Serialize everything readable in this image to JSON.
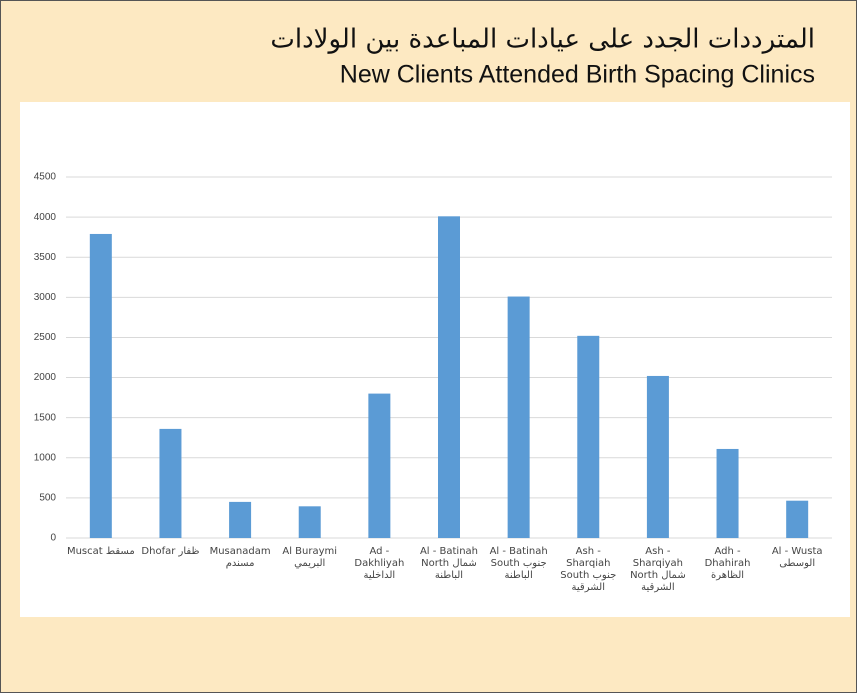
{
  "chart_data": {
    "type": "bar",
    "title": "المترددات الجدد على عيادات المباعدة بين الولادات",
    "subtitle": "New Clients Attended Birth Spacing Clinics",
    "categories": [
      "Muscat مسقط",
      "Dhofar ظفار",
      "Musanadam مسندم",
      "Al Buraymi البريمي",
      "Ad - Dakhliyah الداخلية",
      "Al - Batinah North شمال الباطنة",
      "Al - Batinah South جنوب الباطنة",
      "Ash - Sharqiah South جنوب الشرقية",
      "Ash - Sharqiyah North شمال الشرقية",
      "Adh - Dhahirah الظاهرة",
      "Al - Wusta الوسطى"
    ],
    "values": [
      3790,
      1360,
      450,
      395,
      1800,
      4010,
      3010,
      2520,
      2020,
      1110,
      465
    ],
    "color": "#5b9bd5",
    "ylim": [
      0,
      4500
    ],
    "yticks": [
      0,
      500,
      1000,
      1500,
      2000,
      2500,
      3000,
      3500,
      4000,
      4500
    ],
    "grid": true
  }
}
